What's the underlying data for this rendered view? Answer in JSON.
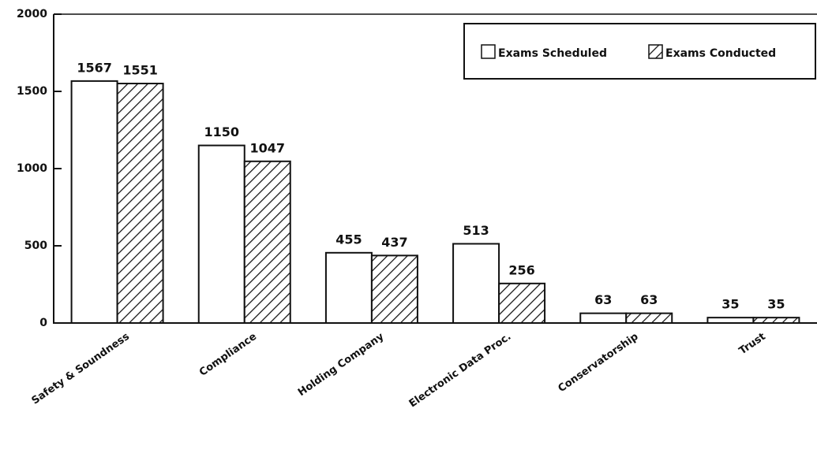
{
  "chart_data": {
    "type": "bar",
    "categories": [
      "Safety & Soundness",
      "Compliance",
      "Holding Company",
      "Electronic Data Proc.",
      "Conservatorship",
      "Trust"
    ],
    "series": [
      {
        "name": "Exams Scheduled",
        "color": "#ffffff",
        "pattern": "solid",
        "values": [
          1567,
          1150,
          455,
          513,
          63,
          35
        ]
      },
      {
        "name": "Exams Conducted",
        "color": "#111111",
        "pattern": "diagonal-hatch",
        "values": [
          1551,
          1047,
          437,
          256,
          63,
          35
        ]
      }
    ],
    "ylim": [
      0,
      2000
    ],
    "yticks": [
      0,
      500,
      1000,
      1500,
      2000
    ],
    "grid": false,
    "legend": "top-right"
  }
}
